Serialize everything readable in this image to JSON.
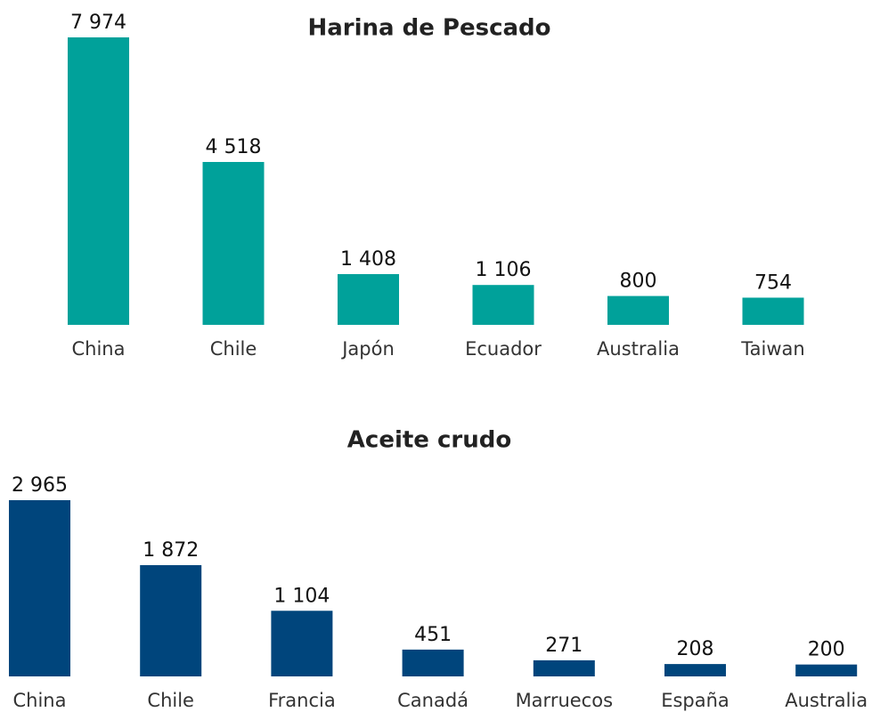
{
  "chart_data": [
    {
      "type": "bar",
      "title": "Harina de Pescado",
      "categories": [
        "China",
        "Chile",
        "Japón",
        "Ecuador",
        "Australia",
        "Taiwan"
      ],
      "values": [
        7974,
        4518,
        1408,
        1106,
        800,
        754
      ],
      "value_labels": [
        "7 974",
        "4 518",
        "1 408",
        "1 106",
        "800",
        "754"
      ],
      "color": "#00a19a"
    },
    {
      "type": "bar",
      "title": "Aceite crudo",
      "categories": [
        "China",
        "Chile",
        "Francia",
        "Canadá",
        "Marruecos",
        "España",
        "Australia"
      ],
      "values": [
        2965,
        1872,
        1104,
        451,
        271,
        208,
        200
      ],
      "value_labels": [
        "2 965",
        "1 872",
        "1 104",
        "451",
        "271",
        "208",
        "200"
      ],
      "color": "#00457c"
    }
  ]
}
